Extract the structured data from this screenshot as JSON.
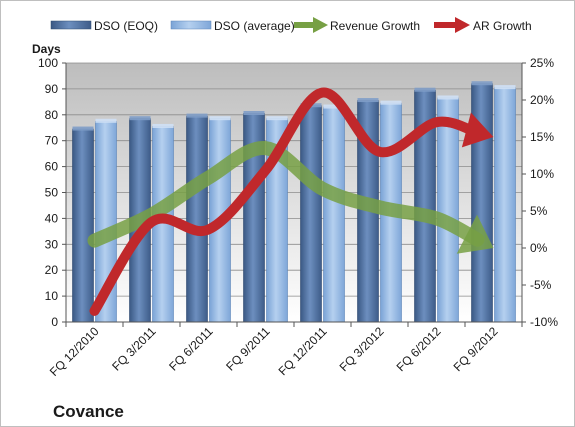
{
  "chart_data": {
    "type": "bar",
    "title": "",
    "company": "Covance",
    "y_axis_title": "Days",
    "categories": [
      "FQ 12/2010",
      "FQ 3/2011",
      "FQ 6/2011",
      "FQ 9/2011",
      "FQ 12/2011",
      "FQ 3/2012",
      "FQ 6/2012",
      "FQ 9/2012"
    ],
    "ylim": [
      0,
      100
    ],
    "yticks": [
      0,
      10,
      20,
      30,
      40,
      50,
      60,
      70,
      80,
      90,
      100
    ],
    "y2lim": [
      -10,
      25
    ],
    "y2ticks": [
      "-10%",
      "-5%",
      "0%",
      "5%",
      "10%",
      "15%",
      "20%",
      "25%"
    ],
    "grid": true,
    "legend_position": "top",
    "series": [
      {
        "name": "DSO (EOQ)",
        "kind": "bar",
        "axis": "left",
        "color": "#4a6b9c",
        "values": [
          74.5,
          78.5,
          79.5,
          80.5,
          83.5,
          85.5,
          89.5,
          92
        ]
      },
      {
        "name": "DSO (average)",
        "kind": "bar",
        "axis": "left",
        "color": "#8db3e2",
        "values": [
          77.5,
          75.5,
          78.5,
          78.5,
          83,
          84.5,
          86.5,
          90.5
        ]
      },
      {
        "name": "Revenue Growth",
        "kind": "line",
        "axis": "right",
        "color": "#77a044",
        "values": [
          1,
          4.5,
          9.5,
          13.5,
          8,
          5.5,
          4,
          0
        ]
      },
      {
        "name": "AR Growth",
        "kind": "line",
        "axis": "right",
        "color": "#c0282b",
        "values": [
          -8.5,
          3.5,
          2.5,
          10.5,
          21,
          13,
          17,
          15
        ]
      }
    ]
  }
}
